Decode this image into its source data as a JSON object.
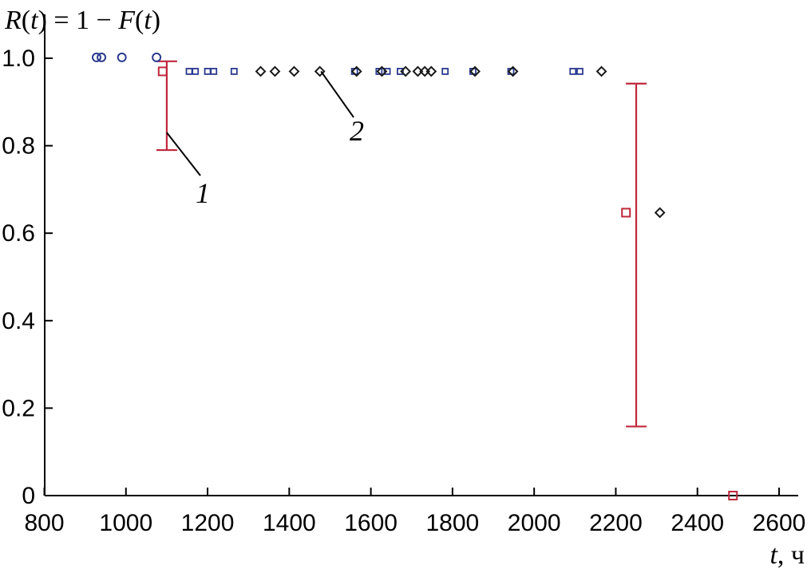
{
  "chart_data": {
    "type": "scatter",
    "title": "",
    "ylabel_parts": [
      {
        "text": "R",
        "italic": true
      },
      {
        "text": "(",
        "italic": false
      },
      {
        "text": "t",
        "italic": true
      },
      {
        "text": ") = 1 − ",
        "italic": false
      },
      {
        "text": "F",
        "italic": true
      },
      {
        "text": "(",
        "italic": false
      },
      {
        "text": "t",
        "italic": true
      },
      {
        "text": ")",
        "italic": false
      }
    ],
    "xlabel_parts": [
      {
        "text": "t",
        "italic": true
      },
      {
        "text": ", ч",
        "italic": false
      }
    ],
    "xlim": [
      800,
      2600
    ],
    "ylim": [
      0,
      1.0
    ],
    "x_ticks": [
      800,
      1000,
      1200,
      1400,
      1600,
      1800,
      2000,
      2200,
      2400,
      2600
    ],
    "x_tick_labels": [
      "800",
      "1000",
      "1200",
      "1400",
      "1600",
      "1800",
      "2000",
      "2200",
      "2400",
      "2600"
    ],
    "y_ticks": [
      0,
      0.2,
      0.4,
      0.6,
      0.8,
      1.0
    ],
    "y_tick_labels": [
      "0",
      "0.2",
      "0.4",
      "0.6",
      "0.8",
      "1.0"
    ],
    "grid": false,
    "series": [
      {
        "marker": "circle",
        "color": "#2b3a8f",
        "points": [
          [
            928,
            1.002
          ],
          [
            940,
            1.002
          ],
          [
            990,
            1.002
          ],
          [
            1075,
            1.002
          ]
        ]
      },
      {
        "marker": "small-square",
        "color": "#2b3a8f",
        "points": [
          [
            1155,
            0.97
          ],
          [
            1170,
            0.97
          ],
          [
            1200,
            0.97
          ],
          [
            1215,
            0.97
          ],
          [
            1265,
            0.97
          ],
          [
            1560,
            0.97
          ],
          [
            1620,
            0.97
          ],
          [
            1640,
            0.97
          ],
          [
            1672,
            0.97
          ],
          [
            1782,
            0.97
          ],
          [
            1850,
            0.97
          ],
          [
            1943,
            0.97
          ],
          [
            2095,
            0.97
          ],
          [
            2112,
            0.97
          ]
        ]
      },
      {
        "marker": "diamond",
        "color": "#1a1a1a",
        "points": [
          [
            1330,
            0.97
          ],
          [
            1365,
            0.97
          ],
          [
            1412,
            0.97
          ],
          [
            1475,
            0.97
          ],
          [
            1565,
            0.97
          ],
          [
            1627,
            0.97
          ],
          [
            1685,
            0.97
          ],
          [
            1715,
            0.97
          ],
          [
            1732,
            0.97
          ],
          [
            1748,
            0.97
          ],
          [
            1855,
            0.97
          ],
          [
            1948,
            0.97
          ],
          [
            2165,
            0.97
          ],
          [
            2308,
            0.647
          ]
        ]
      },
      {
        "marker": "square",
        "color": "#c0283c",
        "points": [
          [
            1090,
            0.97
          ],
          [
            2225,
            0.647
          ],
          [
            2487,
            0.0
          ]
        ]
      }
    ],
    "error_bars": [
      {
        "x": 1100,
        "low": 0.79,
        "high": 0.993,
        "color": "#c0283c"
      },
      {
        "x": 2250,
        "low": 0.158,
        "high": 0.942,
        "color": "#c0283c"
      }
    ],
    "annotations": [
      {
        "text": "1",
        "anchor": [
          1100,
          0.83
        ]
      },
      {
        "text": "2",
        "anchor": [
          1478,
          0.97
        ]
      }
    ]
  }
}
